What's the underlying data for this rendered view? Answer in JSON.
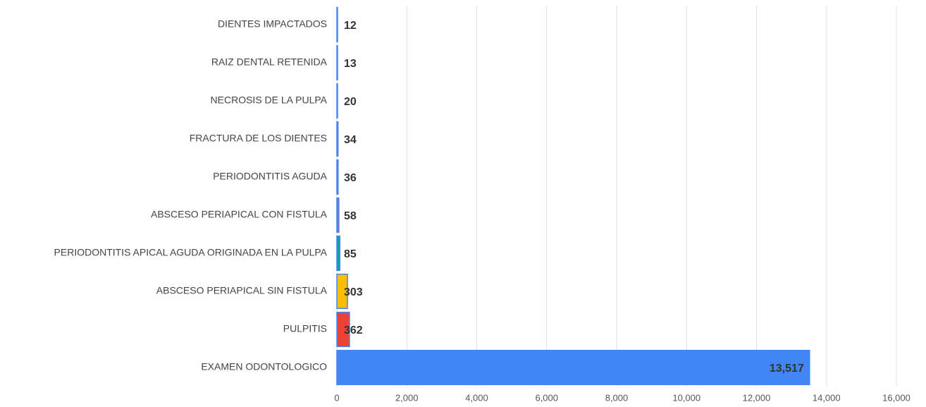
{
  "chart_data": {
    "type": "hbar",
    "categories": [
      "DIENTES IMPACTADOS",
      "RAIZ DENTAL RETENIDA",
      "NECROSIS DE LA PULPA",
      "FRACTURA DE LOS DIENTES",
      "PERIODONTITIS AGUDA",
      "ABSCESO PERIAPICAL CON FISTULA",
      "PERIODONTITIS APICAL AGUDA ORIGINADA EN LA PULPA",
      "ABSCESO PERIAPICAL SIN FISTULA",
      "PULPITIS",
      "EXAMEN ODONTOLOGICO"
    ],
    "values": [
      12,
      13,
      20,
      34,
      36,
      58,
      85,
      303,
      362,
      13517
    ],
    "value_labels": [
      "12",
      "13",
      "20",
      "34",
      "36",
      "58",
      "85",
      "303",
      "362",
      "13,517"
    ],
    "colors": [
      "#4285f4",
      "#4285f4",
      "#4285f4",
      "#4285f4",
      "#4285f4",
      "#9e69af",
      "#00a5a8",
      "#fbbc04",
      "#ea4335",
      "#4285f4"
    ],
    "border_color": "#4285f4",
    "xlim": [
      0,
      16000
    ],
    "xticks": [
      0,
      {
        "value": 2000,
        "label": "2,000"
      },
      {
        "value": 4000,
        "label": "4,000"
      },
      {
        "value": 6000,
        "label": "6,000"
      },
      {
        "value": 8000,
        "label": "8,000"
      },
      {
        "value": 10000,
        "label": "10,000"
      },
      {
        "value": 12000,
        "label": "12,000"
      },
      {
        "value": 14000,
        "label": "14,000"
      },
      {
        "value": 16000,
        "label": "16,000"
      }
    ],
    "grid": true
  }
}
